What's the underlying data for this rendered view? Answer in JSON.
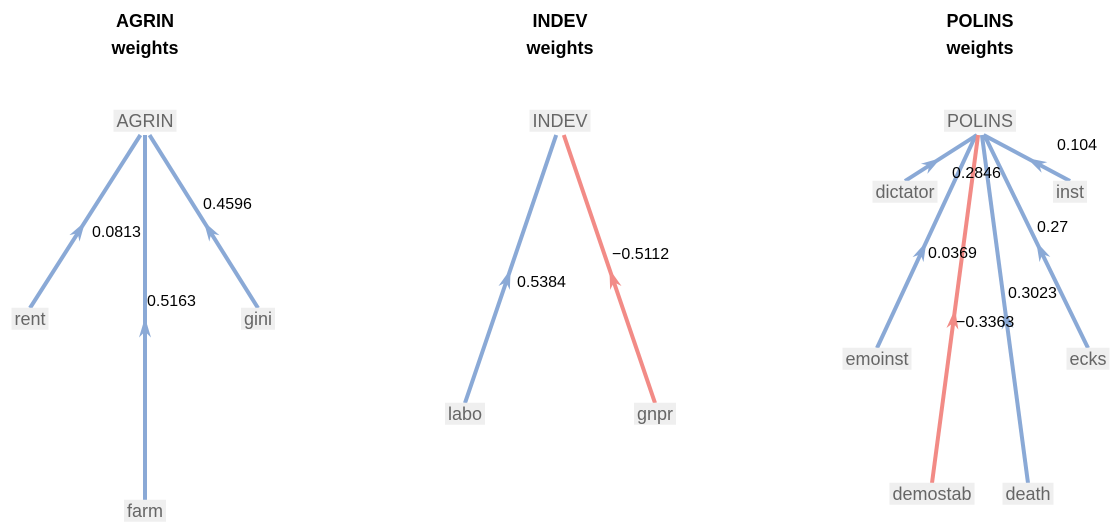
{
  "panels": [
    {
      "title": "AGRIN",
      "subtitle": "weights",
      "root": "AGRIN",
      "edges": [
        {
          "node": "rent",
          "weight": "0.0813"
        },
        {
          "node": "farm",
          "weight": "0.5163"
        },
        {
          "node": "gini",
          "weight": "0.4596"
        }
      ]
    },
    {
      "title": "INDEV",
      "subtitle": "weights",
      "root": "INDEV",
      "edges": [
        {
          "node": "labo",
          "weight": "0.5384"
        },
        {
          "node": "gnpr",
          "weight": "−0.5112"
        }
      ]
    },
    {
      "title": "POLINS",
      "subtitle": "weights",
      "root": "POLINS",
      "edges": [
        {
          "node": "dictator",
          "weight": "0.2846"
        },
        {
          "node": "inst",
          "weight": "0.104"
        },
        {
          "node": "emoinst",
          "weight": "0.0369"
        },
        {
          "node": "ecks",
          "weight": "0.27"
        },
        {
          "node": "demostab",
          "weight": "−0.3363"
        },
        {
          "node": "death",
          "weight": "0.3023"
        }
      ]
    }
  ]
}
